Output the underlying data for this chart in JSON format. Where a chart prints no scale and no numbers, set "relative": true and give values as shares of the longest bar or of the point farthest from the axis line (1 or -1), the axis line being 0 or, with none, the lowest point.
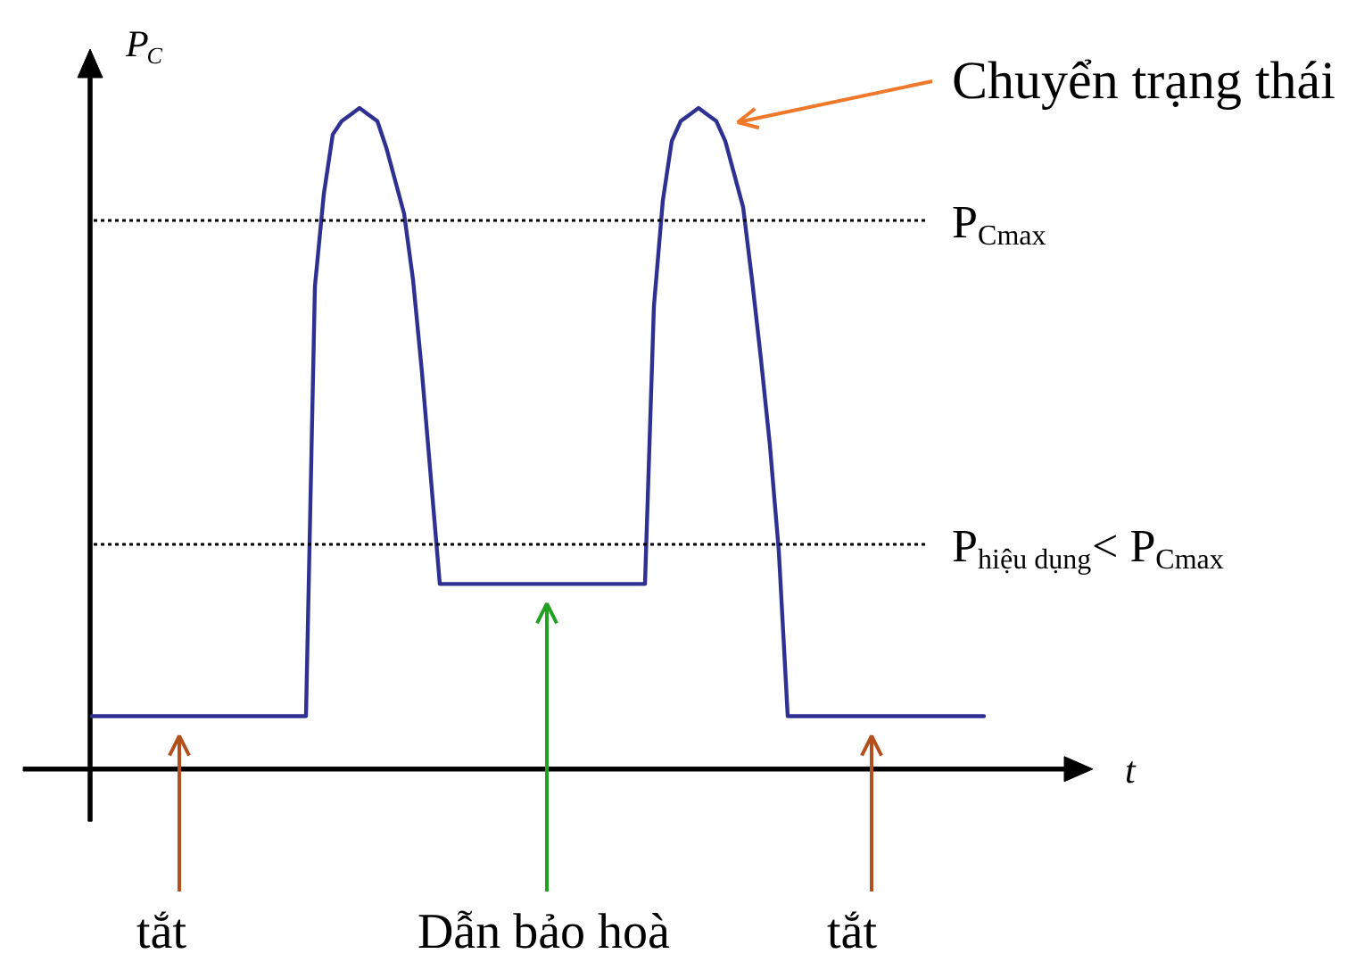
{
  "chart_data": {
    "type": "line",
    "relative": true,
    "xlabel": "t",
    "ylabel": "P$_{C}$",
    "categories": [
      null,
      null,
      null,
      null,
      null,
      null,
      null,
      null,
      null,
      null,
      null,
      null,
      null,
      null,
      null,
      null,
      null,
      null,
      null,
      null,
      null,
      null,
      null,
      null,
      null,
      null,
      null,
      null,
      null,
      null,
      null,
      null,
      null,
      null,
      null,
      null,
      null,
      null,
      null,
      null,
      null,
      null,
      null,
      null,
      null,
      null,
      null,
      null,
      null,
      null,
      null,
      null,
      null,
      null,
      null,
      null,
      null,
      null,
      null,
      null,
      null,
      null,
      null,
      null,
      null,
      null,
      null,
      null,
      null,
      null,
      null,
      null,
      null,
      null,
      null,
      null,
      null,
      null,
      null,
      null,
      null,
      null,
      null,
      null,
      null,
      null,
      null,
      null,
      null,
      null,
      null,
      null,
      null,
      null,
      null,
      null,
      null,
      null,
      null,
      null,
      null
    ],
    "series": [
      {
        "color": "#2e3192",
        "values": [
          0.08,
          0.08,
          0.08,
          0.08,
          0.08,
          0.08,
          0.08,
          0.08,
          0.08,
          0.08,
          0.08,
          0.08,
          0.08,
          0.08,
          0.08,
          0.08,
          0.08,
          0.08,
          0.08,
          0.08,
          0.08,
          0.08,
          0.08,
          0.08,
          0.08,
          0.73,
          0.87,
          0.96,
          0.98,
          0.99,
          1.0,
          0.99,
          0.98,
          0.94,
          0.89,
          0.84,
          0.74,
          0.6,
          0.44,
          0.28,
          0.28,
          0.28,
          0.28,
          0.28,
          0.28,
          0.28,
          0.28,
          0.28,
          0.28,
          0.28,
          0.28,
          0.28,
          0.28,
          0.28,
          0.28,
          0.28,
          0.28,
          0.28,
          0.28,
          0.28,
          0.28,
          0.28,
          0.28,
          0.7,
          0.86,
          0.95,
          0.98,
          0.99,
          1.0,
          0.99,
          0.98,
          0.95,
          0.9,
          0.85,
          0.74,
          0.62,
          0.49,
          0.33,
          0.08,
          0.08,
          0.08,
          0.08,
          0.08,
          0.08,
          0.08,
          0.08,
          0.08,
          0.08,
          0.08,
          0.08,
          0.08,
          0.08,
          0.08,
          0.08,
          0.08,
          0.08,
          0.08,
          0.08,
          0.08,
          0.08,
          0.08
        ]
      }
    ],
    "ref_lines": [
      {
        "axis": "y",
        "value": 0.83,
        "label": "P$_{Cmax}$",
        "color": "#000000",
        "line_style": "dotted"
      },
      {
        "axis": "y",
        "value": 0.34,
        "label": "P$_{hiệu dụng}$< P$_{Cmax}$",
        "color": "#000000",
        "line_style": "dotted"
      }
    ],
    "annotations": [
      "Chuyển trạng thái",
      "tắt",
      "Dẫn bảo hoà",
      "tắt"
    ]
  }
}
